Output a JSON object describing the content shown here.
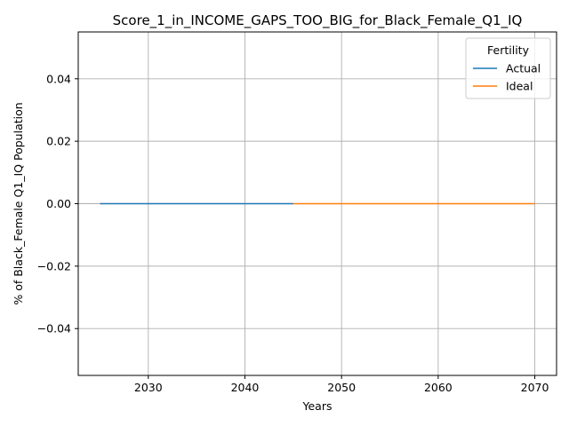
{
  "chart_data": {
    "type": "line",
    "title": "Score_1_in_INCOME_GAPS_TOO_BIG_for_Black_Female_Q1_IQ",
    "xlabel": "Years",
    "ylabel": "% of Black_Female Q1_IQ Population",
    "xlim": [
      2022.75,
      2072.25
    ],
    "ylim": [
      -0.055,
      0.055
    ],
    "xticks": [
      2030,
      2040,
      2050,
      2060,
      2070
    ],
    "yticks": [
      -0.04,
      -0.02,
      0.0,
      0.02,
      0.04
    ],
    "ytick_labels": [
      "−0.04",
      "−0.02",
      "0.00",
      "0.02",
      "0.04"
    ],
    "grid": true,
    "legend": {
      "title": "Fertility",
      "placement": "top-right"
    },
    "series": [
      {
        "name": "Actual",
        "color": "#1f77b4",
        "x": [
          2025,
          2045
        ],
        "y": [
          0,
          0
        ]
      },
      {
        "name": "Ideal",
        "color": "#ff7f0e",
        "x": [
          2045,
          2070
        ],
        "y": [
          0,
          0
        ]
      }
    ]
  }
}
